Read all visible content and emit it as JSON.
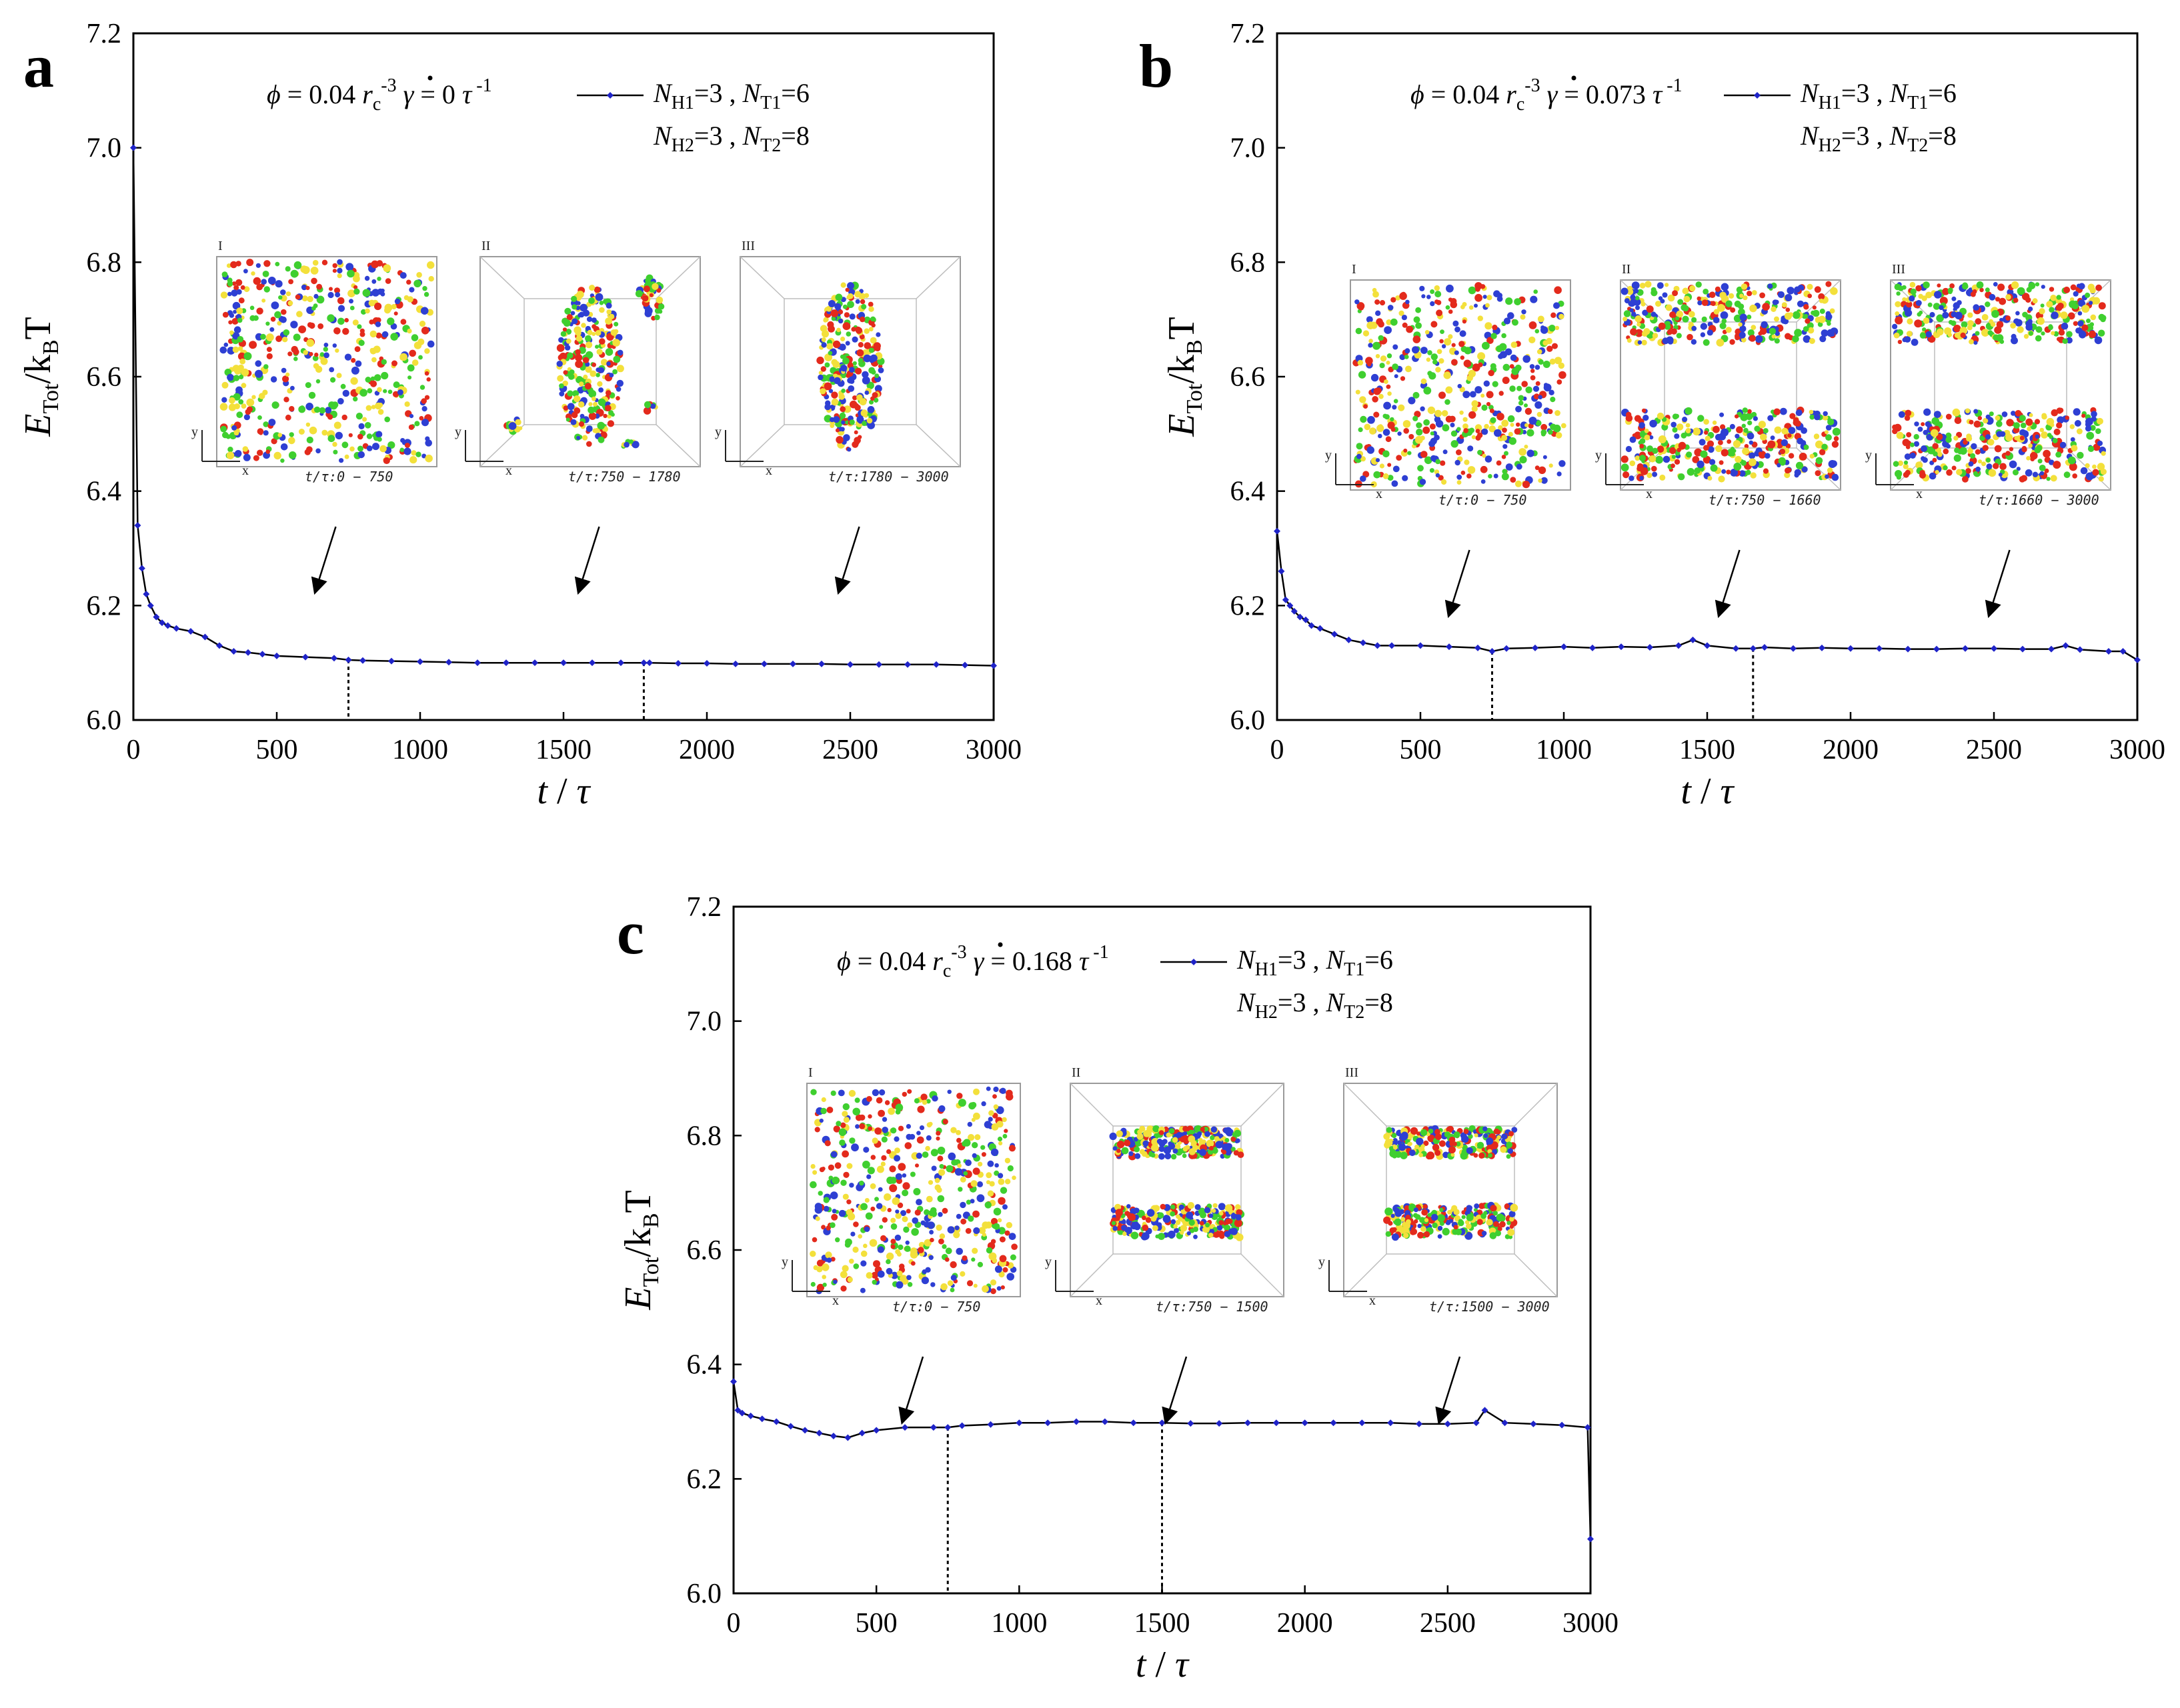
{
  "figure": {
    "common": {
      "phi_label": "ϕ = 0.04 r",
      "phi_sub": "c",
      "phi_sup": "-3",
      "gamma_symbol": "γ",
      "gamma_eq": " = ",
      "tau_unit": "τ",
      "tau_sup": "-1",
      "legend_line1_a": "N",
      "legend_line1_a_sub": "H1",
      "legend_line1_b": "=3 , ",
      "legend_line1_c": "N",
      "legend_line1_c_sub": "T1",
      "legend_line1_d": "=6",
      "legend_line2_a": "N",
      "legend_line2_a_sub": "H2",
      "legend_line2_b": "=3 , ",
      "legend_line2_c": "N",
      "legend_line2_c_sub": "T2",
      "legend_line2_d": "=8",
      "ylabel_main": "E",
      "ylabel_sub": "Tot",
      "ylabel_rest": "/k",
      "ylabel_sub2": "B",
      "ylabel_end": "T",
      "xlabel_t": "t",
      "xlabel_slash": " / ",
      "xlabel_tau": "τ",
      "axis_x_label": "x",
      "axis_y_label": "y",
      "roman": [
        "I",
        "II",
        "III"
      ],
      "colors": {
        "series": "#1f23c8",
        "line": "#000000"
      }
    },
    "panels": [
      {
        "letter": "a",
        "gamma_value": "0",
        "snapshots": [
          "t/τ:0 − 750",
          "t/τ:750 − 1780",
          "t/τ:1780 − 3000"
        ],
        "dividers": [
          750,
          1780
        ]
      },
      {
        "letter": "b",
        "gamma_value": "0.073",
        "snapshots": [
          "t/τ:0 − 750",
          "t/τ:750 − 1660",
          "t/τ:1660 − 3000"
        ],
        "dividers": [
          750,
          1660
        ]
      },
      {
        "letter": "c",
        "gamma_value": "0.168",
        "snapshots": [
          "t/τ:0 − 750",
          "t/τ:750 − 1500",
          "t/τ:1500 − 3000"
        ],
        "dividers": [
          750,
          1500
        ]
      }
    ]
  },
  "chart_data": [
    {
      "type": "line",
      "title": "a",
      "xlabel": "t/τ",
      "ylabel": "E_Tot/k_BT",
      "xlim": [
        0,
        3000
      ],
      "ylim": [
        6.0,
        7.2
      ],
      "xticks": [
        0,
        500,
        1000,
        1500,
        2000,
        2500,
        3000
      ],
      "yticks": [
        6.0,
        6.2,
        6.4,
        6.6,
        6.8,
        7.0,
        7.2
      ],
      "series": [
        {
          "name": "NH1=3, NT1=6; NH2=3, NT2=8",
          "x": [
            0,
            15,
            30,
            45,
            60,
            80,
            100,
            120,
            150,
            200,
            250,
            300,
            350,
            400,
            450,
            500,
            600,
            700,
            750,
            800,
            900,
            1000,
            1100,
            1200,
            1300,
            1400,
            1500,
            1600,
            1700,
            1780,
            1800,
            1900,
            2000,
            2100,
            2200,
            2300,
            2400,
            2500,
            2600,
            2700,
            2800,
            2900,
            3000
          ],
          "y": [
            7.0,
            6.34,
            6.265,
            6.22,
            6.2,
            6.18,
            6.17,
            6.165,
            6.16,
            6.155,
            6.145,
            6.13,
            6.12,
            6.118,
            6.115,
            6.112,
            6.11,
            6.108,
            6.105,
            6.104,
            6.103,
            6.102,
            6.101,
            6.1,
            6.1,
            6.1,
            6.1,
            6.1,
            6.1,
            6.1,
            6.1,
            6.099,
            6.099,
            6.098,
            6.098,
            6.098,
            6.098,
            6.097,
            6.097,
            6.097,
            6.097,
            6.096,
            6.095
          ]
        }
      ],
      "annotations": [
        "ϕ = 0.04 rc^-3",
        "γ̇ = 0 τ^-1"
      ]
    },
    {
      "type": "line",
      "title": "b",
      "xlabel": "t/τ",
      "ylabel": "E_Tot/k_BT",
      "xlim": [
        0,
        3000
      ],
      "ylim": [
        6.0,
        7.2
      ],
      "xticks": [
        0,
        500,
        1000,
        1500,
        2000,
        2500,
        3000
      ],
      "yticks": [
        6.0,
        6.2,
        6.4,
        6.6,
        6.8,
        7.0,
        7.2
      ],
      "series": [
        {
          "name": "NH1=3, NT1=6; NH2=3, NT2=8",
          "x": [
            0,
            15,
            30,
            45,
            60,
            80,
            100,
            120,
            150,
            200,
            250,
            300,
            350,
            400,
            500,
            600,
            700,
            750,
            800,
            900,
            1000,
            1100,
            1200,
            1300,
            1400,
            1450,
            1500,
            1600,
            1660,
            1700,
            1800,
            1900,
            2000,
            2100,
            2200,
            2300,
            2400,
            2500,
            2600,
            2700,
            2750,
            2800,
            2900,
            2950,
            3000
          ],
          "y": [
            6.33,
            6.26,
            6.21,
            6.2,
            6.19,
            6.18,
            6.175,
            6.165,
            6.16,
            6.15,
            6.14,
            6.135,
            6.13,
            6.13,
            6.13,
            6.128,
            6.126,
            6.12,
            6.125,
            6.126,
            6.128,
            6.126,
            6.128,
            6.127,
            6.13,
            6.14,
            6.13,
            6.125,
            6.125,
            6.127,
            6.125,
            6.126,
            6.125,
            6.125,
            6.124,
            6.124,
            6.125,
            6.125,
            6.124,
            6.124,
            6.13,
            6.123,
            6.12,
            6.12,
            6.105
          ]
        }
      ],
      "annotations": [
        "ϕ = 0.04 rc^-3",
        "γ̇ = 0.073 τ^-1"
      ]
    },
    {
      "type": "line",
      "title": "c",
      "xlabel": "t/τ",
      "ylabel": "E_Tot/k_BT",
      "xlim": [
        0,
        3000
      ],
      "ylim": [
        6.0,
        7.2
      ],
      "xticks": [
        0,
        500,
        1000,
        1500,
        2000,
        2500,
        3000
      ],
      "yticks": [
        6.0,
        6.2,
        6.4,
        6.6,
        6.8,
        7.0,
        7.2
      ],
      "series": [
        {
          "name": "NH1=3, NT1=6; NH2=3, NT2=8",
          "x": [
            0,
            15,
            30,
            60,
            100,
            150,
            200,
            250,
            300,
            350,
            400,
            450,
            500,
            600,
            700,
            750,
            800,
            900,
            1000,
            1100,
            1200,
            1300,
            1400,
            1500,
            1600,
            1700,
            1800,
            1900,
            2000,
            2100,
            2200,
            2300,
            2400,
            2500,
            2600,
            2630,
            2700,
            2800,
            2900,
            2990,
            3000
          ],
          "y": [
            6.37,
            6.32,
            6.315,
            6.31,
            6.305,
            6.3,
            6.292,
            6.285,
            6.28,
            6.275,
            6.272,
            6.28,
            6.285,
            6.29,
            6.29,
            6.29,
            6.293,
            6.295,
            6.298,
            6.298,
            6.3,
            6.3,
            6.298,
            6.298,
            6.297,
            6.297,
            6.298,
            6.298,
            6.298,
            6.298,
            6.298,
            6.298,
            6.296,
            6.296,
            6.298,
            6.32,
            6.298,
            6.296,
            6.294,
            6.29,
            6.095
          ]
        }
      ],
      "annotations": [
        "ϕ = 0.04 rc^-3",
        "γ̇ = 0.168 τ^-1"
      ]
    }
  ]
}
